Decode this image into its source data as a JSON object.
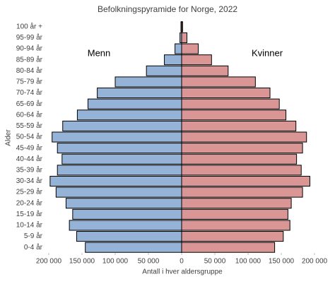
{
  "chart_data": {
    "type": "pyramid",
    "title": "Befolkningspyramide for Norge, 2022",
    "x_label": "Antall i hver aldersgruppe",
    "y_label": "Alder",
    "categories": [
      "0-4 år",
      "5-9 år",
      "10-14 år",
      "15-19 år",
      "20-24 år",
      "25-29 år",
      "30-34 år",
      "35-39 år",
      "40-44 år",
      "45-49 år",
      "50-54 år",
      "55-59 år",
      "60-64 år",
      "65-69 år",
      "70-74 år",
      "75-79 år",
      "80-84 år",
      "85-89 år",
      "90-94 år",
      "95-99 år",
      "100 år +"
    ],
    "series": [
      {
        "name": "Menn",
        "color": "#95b3d7",
        "values": [
          -145000,
          -158000,
          -169000,
          -164000,
          -174000,
          -189000,
          -198000,
          -187000,
          -180000,
          -187000,
          -195000,
          -179000,
          -157000,
          -141000,
          -127000,
          -100000,
          -53000,
          -26000,
          -10000,
          -2500,
          -1000
        ]
      },
      {
        "name": "Kvinner",
        "color": "#da9694",
        "values": [
          140000,
          153000,
          163000,
          160000,
          165000,
          182000,
          193000,
          180000,
          173000,
          182000,
          188000,
          172000,
          157000,
          147000,
          133000,
          111000,
          70000,
          45000,
          25000,
          8000,
          1500
        ]
      }
    ],
    "xlim": [
      -200000,
      200000
    ],
    "xticks": [
      {
        "value": -200000,
        "label": "200 000"
      },
      {
        "value": -150000,
        "label": "150 000"
      },
      {
        "value": -100000,
        "label": "100 000"
      },
      {
        "value": -50000,
        "label": "50 000"
      },
      0,
      {
        "value": 50000,
        "label": "50 000"
      },
      {
        "value": 100000,
        "label": "100 000"
      },
      {
        "value": 150000,
        "label": "150 000"
      },
      {
        "value": 200000,
        "label": "200 000"
      }
    ],
    "grid": false
  }
}
